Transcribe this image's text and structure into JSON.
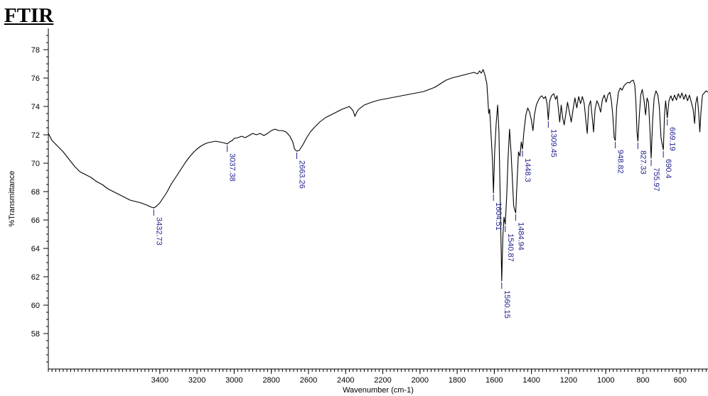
{
  "chart_data": {
    "type": "line",
    "title": "FTIR",
    "xlabel": "Wavenumber (cm-1)",
    "ylabel": "%Transmittance",
    "xlim": [
      4000,
      450
    ],
    "ylim": [
      55.5,
      79.5
    ],
    "x_reversed": true,
    "x_ticks": [
      3400,
      3200,
      3000,
      2800,
      2600,
      2400,
      2200,
      2000,
      1800,
      1600,
      1400,
      1200,
      1000,
      800,
      600
    ],
    "y_ticks": [
      58,
      60,
      62,
      64,
      66,
      68,
      70,
      72,
      74,
      76,
      78
    ],
    "grid": false,
    "series": [
      {
        "color": "#000000",
        "points": [
          [
            4000,
            72.1
          ],
          [
            3980,
            71.6
          ],
          [
            3950,
            71.2
          ],
          [
            3920,
            70.8
          ],
          [
            3890,
            70.3
          ],
          [
            3860,
            69.8
          ],
          [
            3830,
            69.4
          ],
          [
            3800,
            69.2
          ],
          [
            3770,
            69.0
          ],
          [
            3740,
            68.7
          ],
          [
            3710,
            68.5
          ],
          [
            3680,
            68.2
          ],
          [
            3650,
            68.0
          ],
          [
            3620,
            67.8
          ],
          [
            3590,
            67.6
          ],
          [
            3560,
            67.4
          ],
          [
            3530,
            67.3
          ],
          [
            3500,
            67.2
          ],
          [
            3470,
            67.05
          ],
          [
            3445,
            66.9
          ],
          [
            3432.73,
            66.85
          ],
          [
            3420,
            66.95
          ],
          [
            3400,
            67.2
          ],
          [
            3380,
            67.6
          ],
          [
            3360,
            68.0
          ],
          [
            3340,
            68.5
          ],
          [
            3320,
            68.9
          ],
          [
            3300,
            69.3
          ],
          [
            3280,
            69.7
          ],
          [
            3260,
            70.1
          ],
          [
            3240,
            70.45
          ],
          [
            3220,
            70.75
          ],
          [
            3200,
            71.0
          ],
          [
            3180,
            71.2
          ],
          [
            3160,
            71.35
          ],
          [
            3140,
            71.45
          ],
          [
            3120,
            71.5
          ],
          [
            3100,
            71.55
          ],
          [
            3080,
            71.5
          ],
          [
            3060,
            71.45
          ],
          [
            3045,
            71.4
          ],
          [
            3037.38,
            71.35
          ],
          [
            3025,
            71.5
          ],
          [
            3010,
            71.6
          ],
          [
            3000,
            71.75
          ],
          [
            2980,
            71.8
          ],
          [
            2960,
            71.9
          ],
          [
            2940,
            71.8
          ],
          [
            2920,
            71.95
          ],
          [
            2900,
            72.1
          ],
          [
            2880,
            72.0
          ],
          [
            2860,
            72.1
          ],
          [
            2840,
            71.95
          ],
          [
            2820,
            72.1
          ],
          [
            2800,
            72.3
          ],
          [
            2780,
            72.4
          ],
          [
            2760,
            72.3
          ],
          [
            2740,
            72.3
          ],
          [
            2720,
            72.2
          ],
          [
            2700,
            71.9
          ],
          [
            2685,
            71.5
          ],
          [
            2675,
            71.0
          ],
          [
            2663.26,
            70.85
          ],
          [
            2650,
            70.9
          ],
          [
            2630,
            71.3
          ],
          [
            2610,
            71.8
          ],
          [
            2590,
            72.2
          ],
          [
            2570,
            72.5
          ],
          [
            2540,
            72.9
          ],
          [
            2510,
            73.2
          ],
          [
            2480,
            73.4
          ],
          [
            2450,
            73.6
          ],
          [
            2420,
            73.8
          ],
          [
            2400,
            73.9
          ],
          [
            2380,
            74.0
          ],
          [
            2360,
            73.7
          ],
          [
            2350,
            73.3
          ],
          [
            2340,
            73.6
          ],
          [
            2330,
            73.8
          ],
          [
            2300,
            74.1
          ],
          [
            2260,
            74.3
          ],
          [
            2220,
            74.45
          ],
          [
            2180,
            74.55
          ],
          [
            2140,
            74.65
          ],
          [
            2100,
            74.75
          ],
          [
            2060,
            74.85
          ],
          [
            2020,
            74.95
          ],
          [
            1980,
            75.05
          ],
          [
            1950,
            75.2
          ],
          [
            1920,
            75.35
          ],
          [
            1890,
            75.6
          ],
          [
            1860,
            75.85
          ],
          [
            1830,
            76.0
          ],
          [
            1800,
            76.1
          ],
          [
            1770,
            76.2
          ],
          [
            1740,
            76.3
          ],
          [
            1710,
            76.4
          ],
          [
            1690,
            76.3
          ],
          [
            1680,
            76.5
          ],
          [
            1670,
            76.35
          ],
          [
            1660,
            76.6
          ],
          [
            1650,
            76.2
          ],
          [
            1640,
            75.6
          ],
          [
            1635,
            74.6
          ],
          [
            1630,
            73.5
          ],
          [
            1625,
            73.8
          ],
          [
            1620,
            72.6
          ],
          [
            1610,
            70.2
          ],
          [
            1604.51,
            67.9
          ],
          [
            1598,
            70.8
          ],
          [
            1590,
            72.8
          ],
          [
            1582,
            74.1
          ],
          [
            1575,
            72.2
          ],
          [
            1568,
            67.5
          ],
          [
            1560.15,
            61.7
          ],
          [
            1554,
            64.8
          ],
          [
            1548,
            66.2
          ],
          [
            1540.87,
            65.7
          ],
          [
            1533,
            67.8
          ],
          [
            1526,
            70.3
          ],
          [
            1518,
            72.4
          ],
          [
            1510,
            70.8
          ],
          [
            1503,
            69.0
          ],
          [
            1496,
            67.0
          ],
          [
            1490,
            66.7
          ],
          [
            1484.94,
            66.5
          ],
          [
            1478,
            68.6
          ],
          [
            1470,
            70.8
          ],
          [
            1462,
            70.5
          ],
          [
            1455,
            71.5
          ],
          [
            1448.3,
            71.0
          ],
          [
            1440,
            72.3
          ],
          [
            1430,
            73.4
          ],
          [
            1420,
            73.9
          ],
          [
            1410,
            73.6
          ],
          [
            1400,
            73.0
          ],
          [
            1392,
            72.3
          ],
          [
            1384,
            73.4
          ],
          [
            1374,
            74.1
          ],
          [
            1364,
            74.4
          ],
          [
            1354,
            74.65
          ],
          [
            1344,
            74.75
          ],
          [
            1334,
            74.55
          ],
          [
            1324,
            74.7
          ],
          [
            1316,
            74.2
          ],
          [
            1309.45,
            73.05
          ],
          [
            1302,
            74.4
          ],
          [
            1292,
            74.75
          ],
          [
            1280,
            74.9
          ],
          [
            1270,
            74.5
          ],
          [
            1262,
            74.75
          ],
          [
            1254,
            73.7
          ],
          [
            1248,
            72.9
          ],
          [
            1240,
            74.1
          ],
          [
            1232,
            73.2
          ],
          [
            1224,
            72.7
          ],
          [
            1216,
            73.4
          ],
          [
            1206,
            74.3
          ],
          [
            1196,
            73.6
          ],
          [
            1186,
            72.9
          ],
          [
            1176,
            73.8
          ],
          [
            1166,
            74.6
          ],
          [
            1156,
            73.9
          ],
          [
            1146,
            74.7
          ],
          [
            1136,
            74.2
          ],
          [
            1126,
            74.7
          ],
          [
            1116,
            74.2
          ],
          [
            1108,
            73.1
          ],
          [
            1100,
            72.1
          ],
          [
            1092,
            74.0
          ],
          [
            1082,
            74.4
          ],
          [
            1072,
            73.1
          ],
          [
            1066,
            72.2
          ],
          [
            1058,
            73.8
          ],
          [
            1048,
            74.4
          ],
          [
            1038,
            74.1
          ],
          [
            1028,
            73.6
          ],
          [
            1018,
            74.5
          ],
          [
            1008,
            74.8
          ],
          [
            998,
            74.3
          ],
          [
            988,
            74.85
          ],
          [
            978,
            75.0
          ],
          [
            970,
            74.4
          ],
          [
            962,
            73.3
          ],
          [
            955,
            71.8
          ],
          [
            948.82,
            71.6
          ],
          [
            942,
            73.9
          ],
          [
            932,
            75.0
          ],
          [
            922,
            75.3
          ],
          [
            912,
            75.15
          ],
          [
            902,
            75.45
          ],
          [
            892,
            75.6
          ],
          [
            882,
            75.7
          ],
          [
            872,
            75.65
          ],
          [
            862,
            75.8
          ],
          [
            852,
            75.85
          ],
          [
            844,
            75.5
          ],
          [
            838,
            74.3
          ],
          [
            832,
            72.2
          ],
          [
            827.33,
            71.55
          ],
          [
            820,
            73.3
          ],
          [
            812,
            74.8
          ],
          [
            804,
            75.2
          ],
          [
            794,
            74.4
          ],
          [
            786,
            73.4
          ],
          [
            778,
            74.6
          ],
          [
            770,
            74.3
          ],
          [
            762,
            72.3
          ],
          [
            755.97,
            70.35
          ],
          [
            748,
            73.0
          ],
          [
            740,
            74.6
          ],
          [
            730,
            75.1
          ],
          [
            720,
            74.8
          ],
          [
            712,
            74.0
          ],
          [
            703,
            71.8
          ],
          [
            696,
            71.3
          ],
          [
            690.4,
            70.95
          ],
          [
            684,
            73.4
          ],
          [
            678,
            74.4
          ],
          [
            669.19,
            73.2
          ],
          [
            660,
            74.4
          ],
          [
            650,
            74.75
          ],
          [
            640,
            74.4
          ],
          [
            630,
            74.8
          ],
          [
            620,
            74.45
          ],
          [
            610,
            74.9
          ],
          [
            600,
            74.6
          ],
          [
            590,
            74.95
          ],
          [
            580,
            74.5
          ],
          [
            570,
            74.85
          ],
          [
            560,
            74.4
          ],
          [
            550,
            74.8
          ],
          [
            540,
            74.3
          ],
          [
            530,
            73.8
          ],
          [
            522,
            72.8
          ],
          [
            516,
            74.2
          ],
          [
            508,
            74.7
          ],
          [
            500,
            73.6
          ],
          [
            494,
            72.2
          ],
          [
            488,
            73.6
          ],
          [
            480,
            74.8
          ],
          [
            470,
            74.95
          ],
          [
            460,
            75.1
          ],
          [
            450,
            75.0
          ]
        ]
      }
    ],
    "annotations": [
      {
        "label": "3432.73",
        "x": 3432.73,
        "y": 66.85
      },
      {
        "label": "3037.38",
        "x": 3037.38,
        "y": 71.35
      },
      {
        "label": "2663.26",
        "x": 2663.26,
        "y": 70.85
      },
      {
        "label": "1604.51",
        "x": 1604.51,
        "y": 67.9
      },
      {
        "label": "1560.15",
        "x": 1560.15,
        "y": 61.7
      },
      {
        "label": "1540.87",
        "x": 1540.87,
        "y": 65.7
      },
      {
        "label": "1484.94",
        "x": 1484.94,
        "y": 66.5
      },
      {
        "label": "1448.3",
        "x": 1448.3,
        "y": 71.0
      },
      {
        "label": "1309.45",
        "x": 1309.45,
        "y": 73.05
      },
      {
        "label": "948.82",
        "x": 948.82,
        "y": 71.6
      },
      {
        "label": "827.33",
        "x": 827.33,
        "y": 71.55
      },
      {
        "label": "755.97",
        "x": 755.97,
        "y": 70.35
      },
      {
        "label": "690.4",
        "x": 690.4,
        "y": 70.95
      },
      {
        "label": "669.19",
        "x": 669.19,
        "y": 73.2
      }
    ]
  }
}
